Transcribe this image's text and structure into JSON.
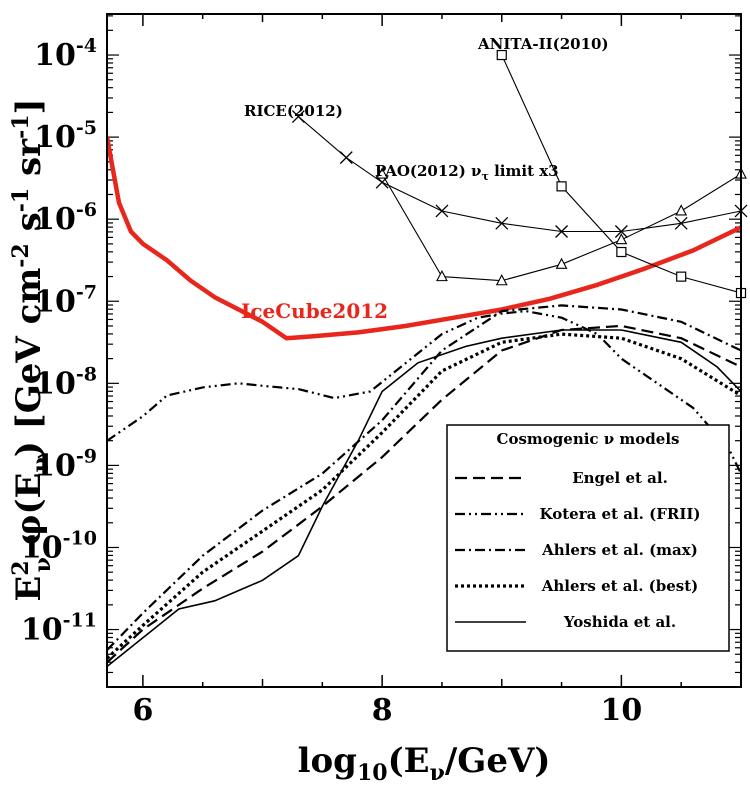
{
  "chart_data": {
    "type": "line",
    "xlabel": "log10(Eν/GeV)",
    "ylabel": "E²ν φ(Eν) [GeV cm⁻² s⁻¹ sr⁻¹]",
    "xlim": [
      5.7,
      11
    ],
    "ylim_log10": [
      -11.7,
      -3.5
    ],
    "x_ticks": [
      6,
      8,
      10
    ],
    "y_ticks": [
      "10-4",
      "10-5",
      "10-6",
      "10-7",
      "10-8",
      "10-9",
      "10-10",
      "10-11"
    ],
    "legend": {
      "title": "Cosmogenic ν models",
      "position": "bottom-right",
      "entries": [
        "Engel et al.",
        "Kotera et al. (FRII)",
        "Ahlers et al. (max)",
        "Ahlers et al. (best)",
        "Yoshida et al."
      ]
    },
    "series": [
      {
        "name": "IceCube2012",
        "label_text": "IceCube2012",
        "style": "thick-red",
        "color": "#e8261c",
        "log10_y": true,
        "x": [
          5.7,
          5.8,
          5.9,
          6.0,
          6.2,
          6.4,
          6.6,
          6.8,
          7.0,
          7.2,
          7.4,
          7.8,
          8.2,
          8.6,
          9.0,
          9.4,
          9.8,
          10.2,
          10.6,
          11.0
        ],
        "y": [
          -5.0,
          -5.8,
          -6.15,
          -6.3,
          -6.5,
          -6.75,
          -6.95,
          -7.1,
          -7.25,
          -7.45,
          -7.43,
          -7.38,
          -7.3,
          -7.2,
          -7.1,
          -6.97,
          -6.8,
          -6.6,
          -6.38,
          -6.1
        ]
      },
      {
        "name": "RICE(2012)",
        "label_text": "RICE(2012)",
        "marker": "x",
        "log10_y": true,
        "x": [
          7.3,
          7.7,
          8.0,
          8.5,
          9.0,
          9.5,
          10.0,
          10.5,
          11.0
        ],
        "y": [
          -4.75,
          -5.25,
          -5.55,
          -5.9,
          -6.05,
          -6.15,
          -6.15,
          -6.05,
          -5.9
        ]
      },
      {
        "name": "ANITA-II(2010)",
        "label_text": "ANITA-II(2010)",
        "marker": "square",
        "log10_y": true,
        "x": [
          9.0,
          9.5,
          10.0,
          10.5,
          11.0
        ],
        "y": [
          -4.0,
          -5.6,
          -6.4,
          -6.7,
          -6.9
        ]
      },
      {
        "name": "PAO(2012) ντ limit x3",
        "label_text": "PAO(2012) ν",
        "label_sub": "τ",
        "label_rest": " limit x3",
        "marker": "triangle",
        "log10_y": true,
        "x": [
          8.0,
          8.5,
          9.0,
          9.5,
          10.0,
          10.5,
          11.0
        ],
        "y": [
          -5.45,
          -6.7,
          -6.75,
          -6.55,
          -6.25,
          -5.9,
          -5.45
        ]
      },
      {
        "name": "Engel et al.",
        "style": "dashed",
        "log10_y": true,
        "x": [
          5.7,
          6.0,
          6.5,
          7.0,
          7.5,
          8.0,
          8.5,
          9.0,
          9.5,
          10.0,
          10.5,
          11.0
        ],
        "y": [
          -11.4,
          -11.0,
          -10.5,
          -10.05,
          -9.5,
          -8.9,
          -8.2,
          -7.6,
          -7.35,
          -7.3,
          -7.45,
          -7.8
        ]
      },
      {
        "name": "Kotera et al. (FRII)",
        "style": "dash-dot-dot",
        "log10_y": true,
        "x": [
          5.7,
          6.0,
          6.2,
          6.5,
          6.8,
          7.0,
          7.3,
          7.6,
          7.9,
          8.2,
          8.5,
          8.8,
          9.0,
          9.2,
          9.5,
          9.8,
          10.0,
          10.3,
          10.6,
          10.9,
          11.0
        ],
        "y": [
          -8.7,
          -8.4,
          -8.15,
          -8.05,
          -8.0,
          -8.03,
          -8.07,
          -8.18,
          -8.1,
          -7.75,
          -7.4,
          -7.2,
          -7.15,
          -7.12,
          -7.2,
          -7.4,
          -7.7,
          -8.0,
          -8.3,
          -8.8,
          -9.1
        ]
      },
      {
        "name": "Ahlers et al. (max)",
        "style": "dash-dot",
        "log10_y": true,
        "x": [
          5.7,
          6.0,
          6.5,
          7.0,
          7.5,
          8.0,
          8.5,
          9.0,
          9.5,
          10.0,
          10.5,
          11.0
        ],
        "y": [
          -11.25,
          -10.8,
          -10.1,
          -9.55,
          -9.1,
          -8.45,
          -7.6,
          -7.12,
          -7.05,
          -7.1,
          -7.25,
          -7.6
        ]
      },
      {
        "name": "Ahlers et al. (best)",
        "style": "dotted",
        "log10_y": true,
        "x": [
          5.7,
          6.0,
          6.5,
          7.0,
          7.5,
          8.0,
          8.5,
          9.0,
          9.5,
          10.0,
          10.5,
          11.0
        ],
        "y": [
          -11.35,
          -10.95,
          -10.3,
          -9.8,
          -9.3,
          -8.6,
          -7.85,
          -7.5,
          -7.4,
          -7.45,
          -7.7,
          -8.15
        ]
      },
      {
        "name": "Yoshida et al.",
        "style": "solid",
        "log10_y": true,
        "x": [
          5.7,
          6.0,
          6.3,
          6.6,
          7.0,
          7.3,
          7.5,
          7.8,
          8.0,
          8.3,
          8.7,
          9.0,
          9.5,
          10.0,
          10.5,
          10.8,
          11.0
        ],
        "y": [
          -11.45,
          -11.1,
          -10.75,
          -10.65,
          -10.4,
          -10.1,
          -9.5,
          -8.7,
          -8.1,
          -7.75,
          -7.55,
          -7.45,
          -7.35,
          -7.35,
          -7.5,
          -7.8,
          -8.1
        ]
      }
    ]
  }
}
